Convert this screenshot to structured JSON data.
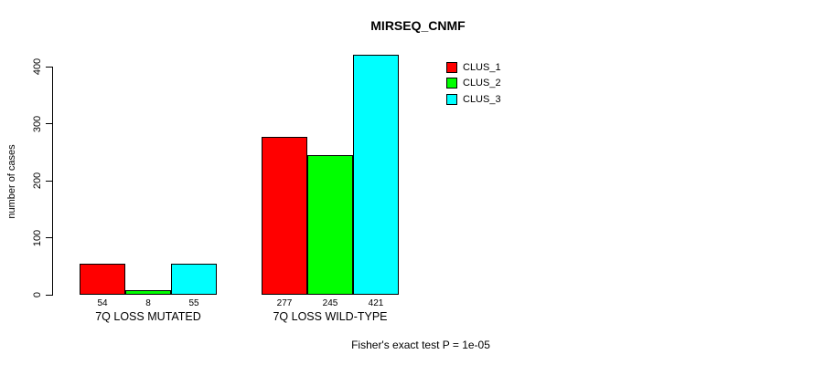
{
  "chart_data": {
    "type": "bar",
    "title": "MIRSEQ_CNMF",
    "xlabel": "",
    "ylabel": "number of cases",
    "ylim": [
      0,
      400
    ],
    "yticks": [
      0,
      100,
      200,
      300,
      400
    ],
    "grid": false,
    "legend_position": "top-right",
    "bar_border_color": "#000000",
    "background_color": "#ffffff",
    "categories": [
      "7Q LOSS MUTATED",
      "7Q LOSS WILD-TYPE"
    ],
    "series": [
      {
        "name": "CLUS_1",
        "color": "#ff0000",
        "values": [
          54,
          277
        ]
      },
      {
        "name": "CLUS_2",
        "color": "#00ff00",
        "values": [
          8,
          245
        ]
      },
      {
        "name": "CLUS_3",
        "color": "#00ffff",
        "values": [
          55,
          421
        ]
      }
    ],
    "annotation": "Fisher's exact test P = 1e-05"
  }
}
